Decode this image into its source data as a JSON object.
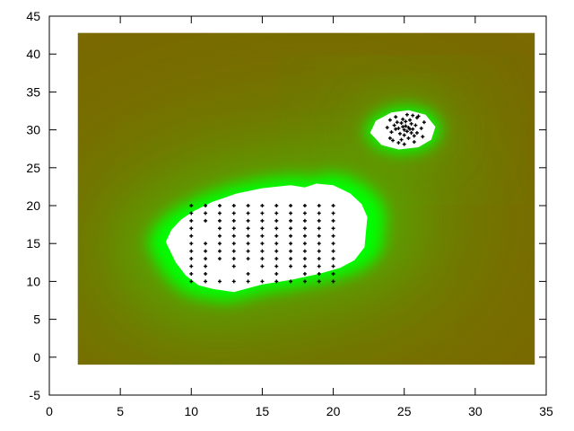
{
  "chart_data": {
    "type": "heatmap",
    "title": "",
    "xlabel": "",
    "ylabel": "",
    "xlim": [
      0,
      35
    ],
    "ylim": [
      -5,
      45
    ],
    "x_ticks": [
      0,
      5,
      10,
      15,
      20,
      25,
      30,
      35
    ],
    "y_ticks": [
      -5,
      0,
      5,
      10,
      15,
      20,
      25,
      30,
      35,
      40,
      45
    ],
    "field_extent": {
      "x": [
        2,
        34.2
      ],
      "y": [
        -1,
        42.8
      ]
    },
    "colors": {
      "far": "#7a6a00",
      "mid": "#5aa000",
      "near": "#00ff00",
      "cutout": "#ffffff",
      "points": "#000000"
    },
    "regions": [
      {
        "label": "lower-cluster",
        "boundary": [
          [
            8.2,
            15.2
          ],
          [
            8.6,
            16.8
          ],
          [
            9.3,
            18.2
          ],
          [
            10.2,
            19.3
          ],
          [
            11.5,
            20.5
          ],
          [
            13.2,
            21.6
          ],
          [
            15.0,
            22.3
          ],
          [
            17.0,
            22.7
          ],
          [
            18.0,
            22.4
          ],
          [
            18.8,
            22.9
          ],
          [
            20.0,
            22.7
          ],
          [
            21.2,
            21.6
          ],
          [
            22.0,
            20.2
          ],
          [
            22.4,
            18.5
          ],
          [
            22.3,
            16.5
          ],
          [
            22.2,
            14.5
          ],
          [
            21.5,
            12.8
          ],
          [
            20.5,
            11.8
          ],
          [
            19.0,
            11.0
          ],
          [
            17.0,
            10.2
          ],
          [
            15.0,
            9.6
          ],
          [
            13.0,
            8.6
          ],
          [
            11.5,
            9.0
          ],
          [
            10.5,
            9.5
          ],
          [
            9.6,
            10.8
          ],
          [
            8.9,
            12.5
          ]
        ]
      },
      {
        "label": "upper-cluster",
        "boundary": [
          [
            22.6,
            29.6
          ],
          [
            23.0,
            31.2
          ],
          [
            24.1,
            32.3
          ],
          [
            25.3,
            32.6
          ],
          [
            26.5,
            32.0
          ],
          [
            27.2,
            30.4
          ],
          [
            26.9,
            28.7
          ],
          [
            26.0,
            27.7
          ],
          [
            24.6,
            27.4
          ],
          [
            23.4,
            28.0
          ]
        ]
      }
    ],
    "grid_points": {
      "x": [
        10,
        11,
        12,
        13,
        14,
        15,
        16,
        17,
        18,
        19,
        20
      ],
      "y": [
        10,
        11,
        12,
        13,
        14,
        15,
        16,
        17,
        18,
        19,
        20
      ],
      "skip": [
        [
          12,
          12
        ],
        [
          12,
          11
        ],
        [
          13,
          11
        ],
        [
          14,
          12
        ],
        [
          15,
          11
        ],
        [
          17,
          11
        ],
        [
          11,
          17
        ],
        [
          11,
          16
        ]
      ]
    },
    "scatter_points": [
      [
        24.3,
        30.6
      ],
      [
        24.5,
        31.0
      ],
      [
        24.6,
        30.2
      ],
      [
        24.7,
        29.5
      ],
      [
        24.8,
        30.9
      ],
      [
        24.9,
        31.4
      ],
      [
        25.0,
        30.0
      ],
      [
        25.0,
        29.3
      ],
      [
        25.1,
        30.5
      ],
      [
        25.1,
        31.1
      ],
      [
        25.2,
        29.8
      ],
      [
        25.3,
        30.3
      ],
      [
        25.3,
        28.9
      ],
      [
        25.4,
        31.3
      ],
      [
        25.5,
        29.6
      ],
      [
        25.5,
        30.8
      ],
      [
        25.6,
        30.1
      ],
      [
        25.7,
        29.2
      ],
      [
        25.8,
        30.6
      ],
      [
        25.9,
        31.6
      ],
      [
        24.1,
        29.7
      ],
      [
        24.2,
        28.6
      ],
      [
        24.4,
        31.7
      ],
      [
        24.6,
        28.3
      ],
      [
        25.7,
        28.4
      ],
      [
        26.2,
        30.2
      ],
      [
        26.0,
        31.8
      ],
      [
        24.0,
        31.3
      ],
      [
        25.2,
        32.0
      ],
      [
        24.8,
        28.7
      ],
      [
        25.9,
        29.6
      ],
      [
        24.4,
        30.1
      ],
      [
        25.4,
        30.1
      ],
      [
        24.9,
        30.4
      ],
      [
        25.6,
        31.9
      ],
      [
        26.3,
        29.1
      ],
      [
        23.8,
        30.3
      ],
      [
        25.0,
        28.1
      ],
      [
        26.4,
        31.0
      ],
      [
        24.0,
        28.9
      ]
    ]
  }
}
